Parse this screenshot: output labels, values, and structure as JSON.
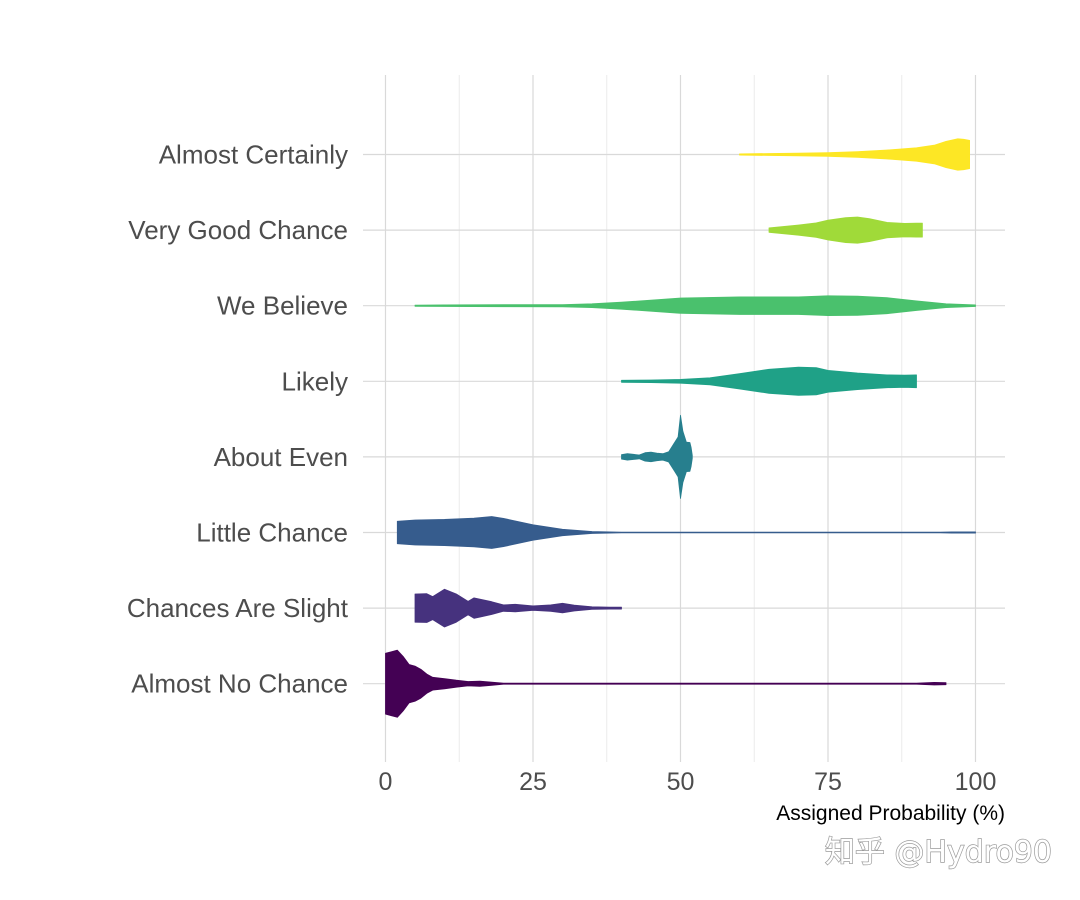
{
  "chart_data": {
    "type": "violin",
    "xlabel": "Assigned Probability (%)",
    "ylabel": "",
    "xlim": [
      0,
      100
    ],
    "x_ticks": [
      0,
      25,
      50,
      75,
      100
    ],
    "grid": true,
    "categories": [
      "Almost Certainly",
      "Very Good Chance",
      "We Believe",
      "Likely",
      "About Even",
      "Little Chance",
      "Chances Are Slight",
      "Almost No Chance"
    ],
    "series": [
      {
        "category": "Almost Certainly",
        "color": "#fde725",
        "profile": [
          [
            60,
            0.04
          ],
          [
            65,
            0.06
          ],
          [
            70,
            0.08
          ],
          [
            75,
            0.12
          ],
          [
            80,
            0.18
          ],
          [
            85,
            0.28
          ],
          [
            90,
            0.42
          ],
          [
            93,
            0.58
          ],
          [
            95,
            0.82
          ],
          [
            97,
            0.98
          ],
          [
            98,
            0.95
          ],
          [
            99,
            0.88
          ]
        ]
      },
      {
        "category": "Very Good Chance",
        "color": "#a0da39",
        "profile": [
          [
            65,
            0.14
          ],
          [
            70,
            0.32
          ],
          [
            73,
            0.45
          ],
          [
            75,
            0.62
          ],
          [
            78,
            0.78
          ],
          [
            80,
            0.82
          ],
          [
            82,
            0.72
          ],
          [
            85,
            0.48
          ],
          [
            88,
            0.42
          ],
          [
            90,
            0.44
          ],
          [
            91,
            0.44
          ]
        ]
      },
      {
        "category": "We Believe",
        "color": "#4ac16d",
        "profile": [
          [
            5,
            0.04
          ],
          [
            10,
            0.05
          ],
          [
            20,
            0.06
          ],
          [
            30,
            0.07
          ],
          [
            35,
            0.12
          ],
          [
            40,
            0.22
          ],
          [
            50,
            0.48
          ],
          [
            60,
            0.55
          ],
          [
            70,
            0.55
          ],
          [
            75,
            0.62
          ],
          [
            80,
            0.6
          ],
          [
            85,
            0.5
          ],
          [
            90,
            0.3
          ],
          [
            95,
            0.12
          ],
          [
            100,
            0.05
          ]
        ]
      },
      {
        "category": "Likely",
        "color": "#1fa187",
        "profile": [
          [
            40,
            0.06
          ],
          [
            45,
            0.08
          ],
          [
            50,
            0.12
          ],
          [
            55,
            0.22
          ],
          [
            60,
            0.48
          ],
          [
            65,
            0.75
          ],
          [
            70,
            0.88
          ],
          [
            73,
            0.85
          ],
          [
            75,
            0.68
          ],
          [
            80,
            0.52
          ],
          [
            85,
            0.4
          ],
          [
            88,
            0.38
          ],
          [
            90,
            0.4
          ]
        ]
      },
      {
        "category": "About Even",
        "color": "#277f8e",
        "profile": [
          [
            40,
            0.14
          ],
          [
            41,
            0.2
          ],
          [
            42,
            0.16
          ],
          [
            43,
            0.12
          ],
          [
            44,
            0.26
          ],
          [
            45,
            0.3
          ],
          [
            46,
            0.24
          ],
          [
            47,
            0.2
          ],
          [
            48,
            0.32
          ],
          [
            49,
            0.9
          ],
          [
            49.6,
            1.25
          ],
          [
            50,
            2.6
          ],
          [
            50.4,
            1.6
          ],
          [
            51,
            0.92
          ],
          [
            51.6,
            0.9
          ],
          [
            51.8,
            0.6
          ],
          [
            52,
            0.1
          ]
        ]
      },
      {
        "category": "Little Chance",
        "color": "#365c8d",
        "profile": [
          [
            2,
            0.7
          ],
          [
            5,
            0.78
          ],
          [
            10,
            0.82
          ],
          [
            15,
            0.9
          ],
          [
            18,
            1.0
          ],
          [
            20,
            0.88
          ],
          [
            25,
            0.48
          ],
          [
            30,
            0.2
          ],
          [
            35,
            0.06
          ],
          [
            40,
            0.02
          ],
          [
            94,
            0.02
          ],
          [
            96,
            0.04
          ],
          [
            100,
            0.04
          ]
        ]
      },
      {
        "category": "Chances Are Slight",
        "color": "#46327e",
        "profile": [
          [
            5,
            0.88
          ],
          [
            7,
            0.9
          ],
          [
            8,
            0.72
          ],
          [
            10,
            1.18
          ],
          [
            12,
            0.88
          ],
          [
            14,
            0.42
          ],
          [
            15,
            0.64
          ],
          [
            16,
            0.56
          ],
          [
            18,
            0.4
          ],
          [
            20,
            0.2
          ],
          [
            22,
            0.24
          ],
          [
            25,
            0.14
          ],
          [
            28,
            0.2
          ],
          [
            30,
            0.3
          ],
          [
            32,
            0.18
          ],
          [
            35,
            0.08
          ],
          [
            38,
            0.06
          ],
          [
            40,
            0.06
          ]
        ]
      },
      {
        "category": "Almost No Chance",
        "color": "#440154",
        "profile": [
          [
            0,
            1.9
          ],
          [
            1,
            2.0
          ],
          [
            2,
            2.1
          ],
          [
            3,
            1.7
          ],
          [
            4,
            1.2
          ],
          [
            5,
            1.1
          ],
          [
            6,
            0.9
          ],
          [
            7,
            0.6
          ],
          [
            8,
            0.4
          ],
          [
            10,
            0.32
          ],
          [
            12,
            0.22
          ],
          [
            14,
            0.14
          ],
          [
            16,
            0.16
          ],
          [
            18,
            0.1
          ],
          [
            20,
            0.03
          ],
          [
            30,
            0.03
          ],
          [
            50,
            0.03
          ],
          [
            90,
            0.03
          ],
          [
            93,
            0.08
          ],
          [
            95,
            0.06
          ]
        ]
      }
    ]
  },
  "watermark": "知乎 @Hydro90"
}
